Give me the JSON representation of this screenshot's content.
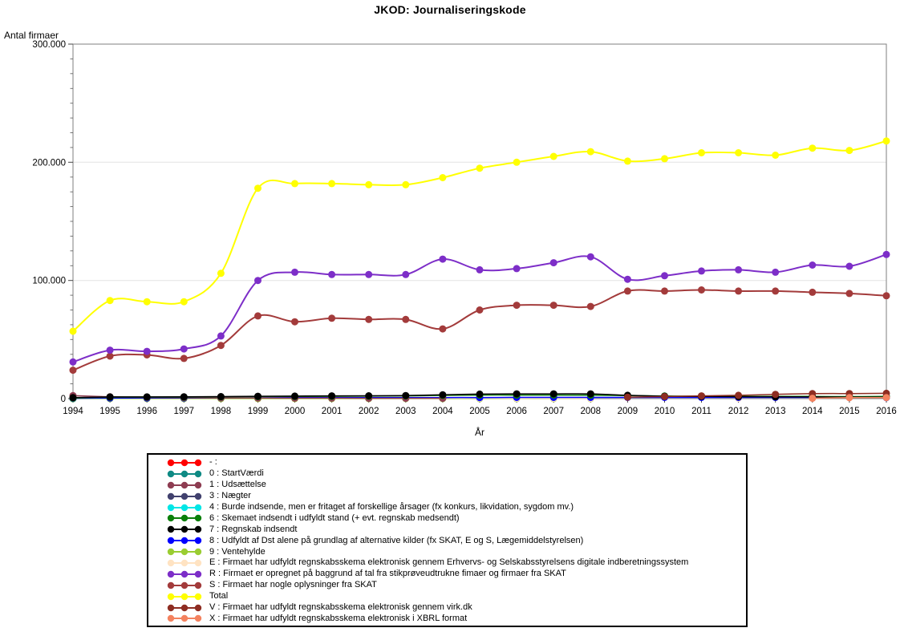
{
  "page": {
    "title": "JKOD: Journaliseringskode"
  },
  "chart_data": {
    "type": "line",
    "title": "JKOD: Journaliseringskode",
    "xlabel": "År",
    "ylabel": "Antal firmaer",
    "x": [
      1994,
      1995,
      1996,
      1997,
      1998,
      1999,
      2000,
      2001,
      2002,
      2003,
      2004,
      2005,
      2006,
      2007,
      2008,
      2009,
      2010,
      2011,
      2012,
      2013,
      2014,
      2015,
      2016
    ],
    "ylim": [
      0,
      300000
    ],
    "y_major_ticks": [
      0,
      100000,
      200000,
      300000
    ],
    "y_tick_labels": [
      "0",
      "100.000",
      "200.000",
      "300.000"
    ],
    "y_minor_step": 12500,
    "grid": "horizontal gridlines at major y ticks",
    "legend_position": "boxed legend below chart",
    "draw_order": [
      "dash",
      "0",
      "3",
      "4",
      "9",
      "E",
      "8",
      "1",
      "6",
      "7",
      "S",
      "R",
      "Total",
      "V",
      "X"
    ],
    "series": [
      {
        "id": "dash",
        "label": "- :",
        "color": "#FF0000",
        "width": 1.5,
        "values": [
          300,
          null,
          null,
          null,
          null,
          null,
          null,
          null,
          null,
          null,
          null,
          null,
          null,
          null,
          null,
          null,
          null,
          null,
          null,
          null,
          null,
          null,
          null
        ]
      },
      {
        "id": "0",
        "label": "0 : StartVærdi",
        "color": "#0F8A84",
        "width": 1.5,
        "values": [
          150,
          null,
          null,
          null,
          null,
          null,
          null,
          null,
          null,
          null,
          null,
          null,
          null,
          null,
          null,
          null,
          null,
          null,
          null,
          null,
          null,
          null,
          null
        ]
      },
      {
        "id": "1",
        "label": "1 : Udsættelse",
        "color": "#8E3D52",
        "width": 1.5,
        "values": [
          2500,
          1500,
          1000,
          800,
          600,
          500,
          400,
          400,
          300,
          300,
          300,
          null,
          null,
          null,
          null,
          null,
          null,
          null,
          null,
          null,
          null,
          null,
          null
        ]
      },
      {
        "id": "3",
        "label": "3 : Nægter",
        "color": "#41416E",
        "width": 1.5,
        "values": [
          100,
          null,
          null,
          null,
          null,
          null,
          null,
          null,
          null,
          null,
          null,
          null,
          null,
          null,
          null,
          null,
          null,
          null,
          null,
          null,
          null,
          null,
          null
        ]
      },
      {
        "id": "4",
        "label": "4 : Burde indsende, men er fritaget af forskellige årsager (fx konkurs, likvidation, sygdom mv.)",
        "color": "#00E6E6",
        "width": 1.5,
        "values": [
          100,
          null,
          null,
          null,
          null,
          null,
          null,
          null,
          null,
          null,
          null,
          null,
          null,
          null,
          null,
          null,
          null,
          null,
          null,
          null,
          null,
          null,
          null
        ]
      },
      {
        "id": "6",
        "label": "6 : Skemaet indsendt i udfyldt stand (+ evt. regnskab medsendt)",
        "color": "#0B800B",
        "width": 1.5,
        "values": [
          500,
          1200,
          1300,
          1300,
          1500,
          1700,
          1800,
          2000,
          2100,
          2300,
          2700,
          3000,
          3000,
          3000,
          2900,
          2500,
          2200,
          2000,
          1900,
          1800,
          1800,
          1700,
          1800
        ]
      },
      {
        "id": "7",
        "label": "7 : Regnskab indsendt",
        "color": "#000000",
        "width": 1.5,
        "values": [
          800,
          1400,
          1400,
          1500,
          1700,
          2000,
          2100,
          2300,
          2400,
          2600,
          3200,
          3800,
          4000,
          4000,
          4000,
          2800,
          2000,
          1800,
          1600,
          1500,
          1400,
          1300,
          1200
        ]
      },
      {
        "id": "8",
        "label": "8 : Udfyldt af Dst alene på grundlag af alternative kilder (fx SKAT, E og S, Lægemiddelstyrelsen)",
        "color": "#0000FF",
        "width": 1.5,
        "values": [
          300,
          500,
          500,
          500,
          600,
          700,
          800,
          800,
          800,
          800,
          900,
          900,
          1000,
          1000,
          1000,
          1000,
          1000,
          1000,
          1000,
          1000,
          1000,
          1000,
          800
        ]
      },
      {
        "id": "9",
        "label": "9 : Ventehylde",
        "color": "#9ACD32",
        "width": 1.5,
        "values": [
          100,
          100,
          100,
          100,
          100,
          100,
          100,
          100,
          100,
          100,
          100,
          100,
          100,
          100,
          100,
          null,
          null,
          null,
          null,
          null,
          null,
          null,
          null
        ]
      },
      {
        "id": "E",
        "label": "E : Firmaet har udfyldt regnskabsskema elektronisk gennem Erhvervs- og Selskabsstyrelsens digitale indberetningssystem",
        "color": "#FFE3C2",
        "width": 1.5,
        "values": [
          null,
          null,
          null,
          null,
          null,
          null,
          null,
          null,
          null,
          400,
          500,
          400,
          300,
          300,
          200,
          null,
          null,
          null,
          300,
          null,
          null,
          null,
          null
        ]
      },
      {
        "id": "R",
        "label": "R : Firmaet er opregnet på baggrund af tal fra stikprøveudtrukne fimaer og firmaer fra SKAT",
        "color": "#7D2EC8",
        "width": 2,
        "values": [
          31000,
          41000,
          40000,
          42000,
          53000,
          100000,
          107000,
          105000,
          105000,
          105000,
          118000,
          109000,
          110000,
          115000,
          120000,
          101000,
          104000,
          108000,
          109000,
          107000,
          113000,
          112000,
          122000
        ]
      },
      {
        "id": "S",
        "label": "S : Firmaet har nogle oplysninger fra SKAT",
        "color": "#A33B3B",
        "width": 2,
        "values": [
          24000,
          36000,
          37000,
          34000,
          45000,
          70000,
          65000,
          68000,
          67000,
          67000,
          59000,
          75000,
          79000,
          79000,
          78000,
          91000,
          91000,
          92000,
          91000,
          91000,
          90000,
          89000,
          87000
        ]
      },
      {
        "id": "Total",
        "label": "Total",
        "color": "#FFFF00",
        "width": 2,
        "values": [
          57000,
          83000,
          82000,
          82000,
          106000,
          178000,
          182000,
          182000,
          181000,
          181000,
          187000,
          195000,
          200000,
          205000,
          209000,
          201000,
          203000,
          208000,
          208000,
          206000,
          212000,
          210000,
          218000
        ]
      },
      {
        "id": "V",
        "label": "V : Firmaet har udfyldt regnskabsskema elektronisk gennem virk.dk",
        "color": "#8E2D22",
        "width": 1.5,
        "values": [
          null,
          null,
          null,
          null,
          null,
          null,
          null,
          null,
          null,
          null,
          null,
          null,
          null,
          null,
          null,
          1200,
          1700,
          2300,
          2800,
          3600,
          4200,
          4300,
          4500
        ]
      },
      {
        "id": "X",
        "label": "X : Firmaet har udfyldt regnskabsskema elektronisk i XBRL format",
        "color": "#F4825F",
        "width": 1.5,
        "values": [
          null,
          null,
          null,
          null,
          null,
          null,
          null,
          null,
          null,
          null,
          null,
          null,
          null,
          null,
          null,
          null,
          null,
          null,
          null,
          null,
          300,
          800,
          900
        ]
      }
    ]
  }
}
